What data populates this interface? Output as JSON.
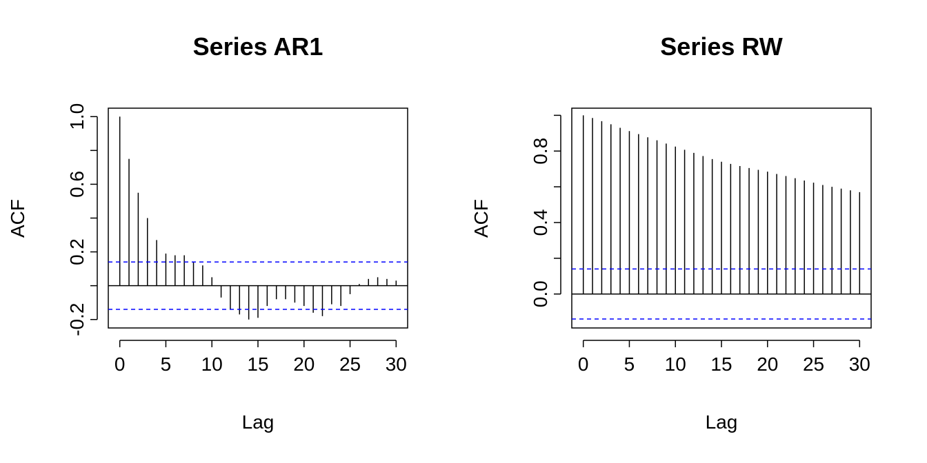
{
  "chart_data": [
    {
      "type": "bar",
      "title": "Series  AR1",
      "xlabel": "Lag",
      "ylabel": "ACF",
      "xlim": [
        -1.25,
        31.25
      ],
      "ylim": [
        -0.25,
        1.05
      ],
      "x_ticks": [
        0,
        5,
        10,
        15,
        20,
        25,
        30
      ],
      "x_tick_labels": [
        "0",
        "5",
        "10",
        "15",
        "20",
        "25",
        "30"
      ],
      "y_ticks": [
        -0.2,
        0.2,
        0.6,
        1.0
      ],
      "y_tick_labels": [
        "-0.2",
        "0.2",
        "0.6",
        "1.0"
      ],
      "y_minor_ticks": [
        0.0,
        0.4,
        0.8
      ],
      "confidence_bounds": [
        0.14,
        -0.14
      ],
      "colors": {
        "bars": "#000000",
        "bounds": "#0000ff"
      },
      "x": [
        0,
        1,
        2,
        3,
        4,
        5,
        6,
        7,
        8,
        9,
        10,
        11,
        12,
        13,
        14,
        15,
        16,
        17,
        18,
        19,
        20,
        21,
        22,
        23,
        24,
        25,
        26,
        27,
        28,
        29,
        30
      ],
      "values": [
        1.0,
        0.75,
        0.55,
        0.4,
        0.27,
        0.19,
        0.18,
        0.18,
        0.14,
        0.12,
        0.05,
        -0.07,
        -0.14,
        -0.17,
        -0.2,
        -0.19,
        -0.12,
        -0.08,
        -0.08,
        -0.1,
        -0.12,
        -0.16,
        -0.18,
        -0.11,
        -0.12,
        -0.05,
        0.01,
        0.04,
        0.05,
        0.04,
        0.03
      ]
    },
    {
      "type": "bar",
      "title": "Series  RW",
      "xlabel": "Lag",
      "ylabel": "ACF",
      "xlim": [
        -1.25,
        31.25
      ],
      "ylim": [
        -0.19,
        1.04
      ],
      "x_ticks": [
        0,
        5,
        10,
        15,
        20,
        25,
        30
      ],
      "x_tick_labels": [
        "0",
        "5",
        "10",
        "15",
        "20",
        "25",
        "30"
      ],
      "y_ticks": [
        0.0,
        0.4,
        0.8
      ],
      "y_tick_labels": [
        "0.0",
        "0.4",
        "0.8"
      ],
      "y_minor_ticks": [
        0.2,
        0.6,
        1.0
      ],
      "confidence_bounds": [
        0.14,
        -0.14
      ],
      "colors": {
        "bars": "#000000",
        "bounds": "#0000ff"
      },
      "x": [
        0,
        1,
        2,
        3,
        4,
        5,
        6,
        7,
        8,
        9,
        10,
        11,
        12,
        13,
        14,
        15,
        16,
        17,
        18,
        19,
        20,
        21,
        22,
        23,
        24,
        25,
        26,
        27,
        28,
        29,
        30
      ],
      "values": [
        1.0,
        0.985,
        0.967,
        0.95,
        0.93,
        0.912,
        0.895,
        0.877,
        0.86,
        0.842,
        0.825,
        0.807,
        0.79,
        0.772,
        0.755,
        0.74,
        0.728,
        0.716,
        0.705,
        0.695,
        0.685,
        0.672,
        0.66,
        0.648,
        0.635,
        0.623,
        0.61,
        0.6,
        0.59,
        0.58,
        0.57
      ]
    }
  ]
}
